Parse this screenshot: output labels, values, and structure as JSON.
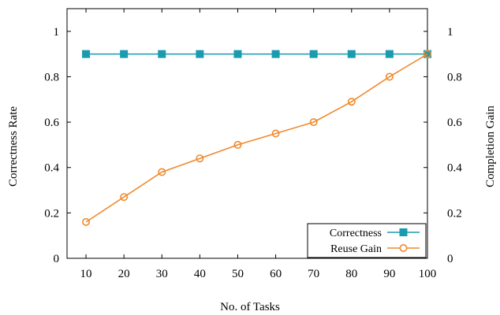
{
  "chart_data": {
    "type": "line",
    "x": [
      10,
      20,
      30,
      40,
      50,
      60,
      70,
      80,
      90,
      100
    ],
    "xlabel": "No. of Tasks",
    "ylabel_left": "Correctness Rate",
    "ylabel_right": "Completion Gain",
    "x_ticks": [
      "10",
      "20",
      "30",
      "40",
      "50",
      "60",
      "70",
      "80",
      "90",
      "100"
    ],
    "y_ticks_left": [
      "0",
      "0.2",
      "0.4",
      "0.6",
      "0.8",
      "1"
    ],
    "y_ticks_right": [
      "0",
      "0.2",
      "0.4",
      "0.6",
      "0.8",
      "1"
    ],
    "ylim": [
      0,
      1.1
    ],
    "series": [
      {
        "name": "Correctness",
        "values": [
          0.9,
          0.9,
          0.9,
          0.9,
          0.9,
          0.9,
          0.9,
          0.9,
          0.9,
          0.9
        ],
        "color": "#1a9bb0",
        "marker": "square",
        "axis": "left"
      },
      {
        "name": "Reuse Gain",
        "values": [
          0.16,
          0.27,
          0.38,
          0.44,
          0.5,
          0.55,
          0.6,
          0.69,
          0.8,
          0.9
        ],
        "color": "#f08a2c",
        "marker": "circle",
        "axis": "right"
      }
    ],
    "legend_position": "bottom-right",
    "grid": false
  }
}
